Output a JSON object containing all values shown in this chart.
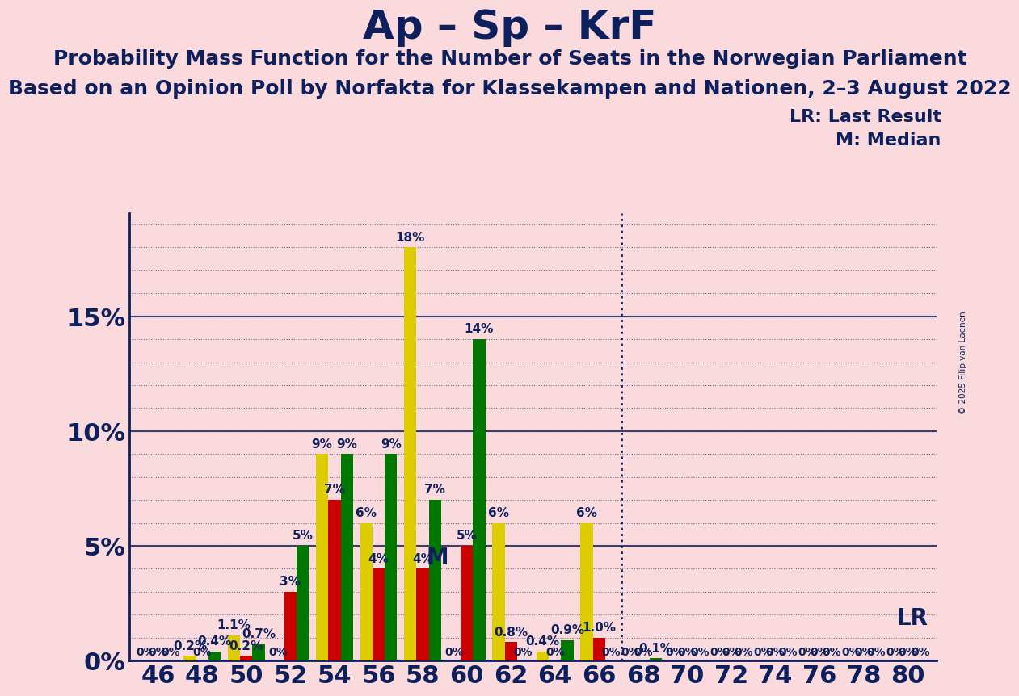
{
  "title": "Ap – Sp – KrF",
  "subtitle1": "Probability Mass Function for the Number of Seats in the Norwegian Parliament",
  "subtitle2": "Based on an Opinion Poll by Norfakta for Klassekampen and Nationen, 2–3 August 2022",
  "copyright": "© 2025 Filip van Laenen",
  "lr_label": "LR: Last Result",
  "m_label": "M: Median",
  "background_color": "#FADADD",
  "bar_colors_order": [
    "#DDCC00",
    "#CC0000",
    "#007700"
  ],
  "axis_color": "#0D1F5C",
  "text_color": "#0D1F5C",
  "grid_color": "#0D1F5C",
  "xlabel_fontsize": 22,
  "ylabel_fontsize": 22,
  "title_fontsize": 36,
  "subtitle_fontsize": 18,
  "bar_label_fontsize": 11,
  "seats": [
    46,
    48,
    50,
    52,
    54,
    56,
    58,
    60,
    62,
    64,
    66,
    68,
    70,
    72,
    74,
    76,
    78,
    80
  ],
  "yellow_values": [
    0.0,
    0.2,
    1.1,
    0.0,
    9.0,
    6.0,
    18.0,
    0.0,
    6.0,
    0.4,
    6.0,
    0.0,
    0.0,
    0.0,
    0.0,
    0.0,
    0.0,
    0.0
  ],
  "red_values": [
    0.0,
    0.0,
    0.2,
    3.0,
    7.0,
    4.0,
    4.0,
    5.0,
    0.8,
    0.0,
    1.0,
    0.0,
    0.0,
    0.0,
    0.0,
    0.0,
    0.0,
    0.0
  ],
  "green_values": [
    0.0,
    0.4,
    0.7,
    5.0,
    9.0,
    9.0,
    7.0,
    14.0,
    0.0,
    0.9,
    0.0,
    0.1,
    0.0,
    0.0,
    0.0,
    0.0,
    0.0,
    0.0
  ],
  "yellow_labels": [
    "0%",
    "0.2%",
    "1.1%",
    "0%",
    "9%",
    "6%",
    "18%",
    "0%",
    "6%",
    "0.4%",
    "6%",
    "0%",
    "0%",
    "0%",
    "0%",
    "0%",
    "0%",
    "0%"
  ],
  "red_labels": [
    "0%",
    "0%",
    "0.2%",
    "3%",
    "7%",
    "4%",
    "4%",
    "5%",
    "0.8%",
    "0%",
    "1.0%",
    "0%",
    "0%",
    "0%",
    "0%",
    "0%",
    "0%",
    "0%"
  ],
  "green_labels": [
    "0%",
    "0.4%",
    "0.7%",
    "5%",
    "9%",
    "9%",
    "7%",
    "14%",
    "0%",
    "0.9%",
    "0%",
    "0.1%",
    "0%",
    "0%",
    "0%",
    "0%",
    "0%",
    "0%"
  ],
  "ylim_max": 19.5,
  "yticks": [
    0,
    5,
    10,
    15
  ],
  "ytick_labels": [
    "0%",
    "5%",
    "10%",
    "15%"
  ],
  "lr_seat": 67,
  "m_seat": 59,
  "bar_width": 0.28
}
